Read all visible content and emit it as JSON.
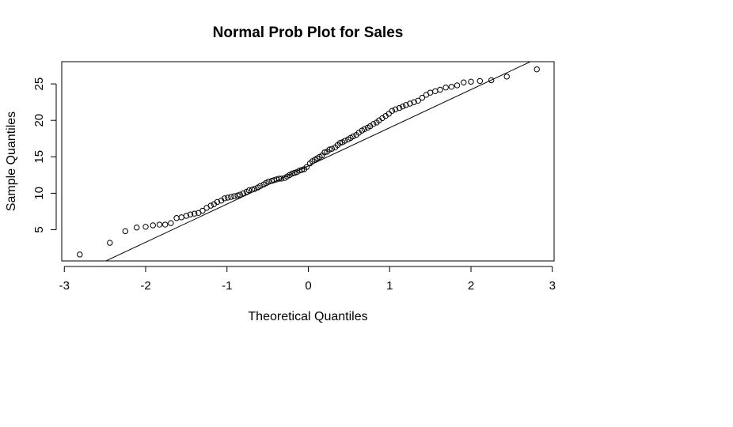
{
  "chart_data": {
    "type": "scatter",
    "title": "Normal Prob Plot for Sales",
    "xlabel": "Theoretical Quantiles",
    "ylabel": "Sample Quantiles",
    "xlim": [
      -3,
      3
    ],
    "ylim": [
      0.5,
      28
    ],
    "x_ticks": [
      "-3",
      "-2",
      "-1",
      "0",
      "1",
      "2",
      "3"
    ],
    "y_ticks": [
      "5",
      "10",
      "15",
      "20",
      "25"
    ],
    "grid": false,
    "legend": "none",
    "reference_line": {
      "x": [
        -2.55,
        2.76
      ],
      "y": [
        0.4,
        28.2
      ]
    },
    "points": {
      "x": [
        -2.81,
        -2.44,
        -2.25,
        -2.11,
        -2.0,
        -1.91,
        -1.83,
        -1.76,
        -1.69,
        -1.62,
        -1.56,
        -1.5,
        -1.45,
        -1.4,
        -1.35,
        -1.3,
        -1.25,
        -1.2,
        -1.16,
        -1.12,
        -1.07,
        -1.03,
        -0.99,
        -0.95,
        -0.91,
        -0.87,
        -0.84,
        -0.8,
        -0.76,
        -0.73,
        -0.69,
        -0.66,
        -0.62,
        -0.59,
        -0.55,
        -0.52,
        -0.49,
        -0.45,
        -0.42,
        -0.39,
        -0.36,
        -0.33,
        -0.29,
        -0.26,
        -0.23,
        -0.2,
        -0.17,
        -0.14,
        -0.11,
        -0.08,
        -0.05,
        -0.02,
        0.02,
        0.05,
        0.08,
        0.11,
        0.14,
        0.17,
        0.2,
        0.23,
        0.26,
        0.29,
        0.33,
        0.36,
        0.39,
        0.42,
        0.45,
        0.49,
        0.52,
        0.55,
        0.59,
        0.62,
        0.66,
        0.69,
        0.73,
        0.76,
        0.8,
        0.84,
        0.87,
        0.91,
        0.95,
        0.99,
        1.03,
        1.07,
        1.12,
        1.16,
        1.2,
        1.25,
        1.3,
        1.35,
        1.4,
        1.45,
        1.5,
        1.56,
        1.62,
        1.69,
        1.76,
        1.83,
        1.91,
        2.0,
        2.11,
        2.25,
        2.44,
        2.81
      ],
      "y": [
        1.6,
        3.2,
        4.8,
        5.3,
        5.4,
        5.6,
        5.7,
        5.7,
        5.9,
        6.6,
        6.7,
        6.9,
        7.1,
        7.2,
        7.3,
        7.6,
        8.0,
        8.3,
        8.5,
        8.8,
        9.0,
        9.3,
        9.4,
        9.5,
        9.6,
        9.7,
        9.8,
        10.0,
        10.2,
        10.4,
        10.5,
        10.6,
        10.8,
        11.0,
        11.2,
        11.4,
        11.6,
        11.7,
        11.8,
        11.9,
        12.0,
        12.0,
        12.1,
        12.3,
        12.5,
        12.7,
        12.8,
        12.9,
        13.1,
        13.2,
        13.3,
        13.6,
        14.1,
        14.4,
        14.6,
        14.8,
        15.0,
        15.2,
        15.6,
        15.7,
        16.0,
        16.1,
        16.3,
        16.6,
        16.9,
        17.0,
        17.2,
        17.4,
        17.6,
        17.8,
        18.0,
        18.3,
        18.6,
        18.8,
        19.0,
        19.2,
        19.5,
        19.7,
        20.0,
        20.3,
        20.6,
        20.9,
        21.3,
        21.5,
        21.7,
        21.9,
        22.1,
        22.3,
        22.5,
        22.7,
        23.1,
        23.5,
        23.8,
        24.0,
        24.2,
        24.5,
        24.6,
        24.8,
        25.2,
        25.3,
        25.4,
        25.5,
        26.0,
        27.0
      ]
    }
  }
}
